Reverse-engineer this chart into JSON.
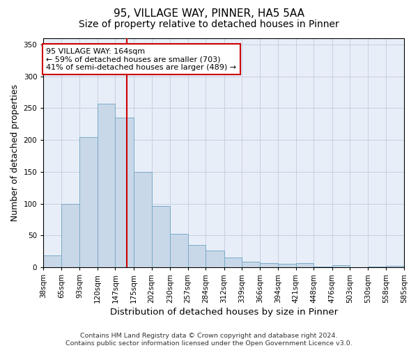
{
  "title_line1": "95, VILLAGE WAY, PINNER, HA5 5AA",
  "title_line2": "Size of property relative to detached houses in Pinner",
  "xlabel": "Distribution of detached houses by size in Pinner",
  "ylabel": "Number of detached properties",
  "footnote": "Contains HM Land Registry data © Crown copyright and database right 2024.\nContains public sector information licensed under the Open Government Licence v3.0.",
  "bin_labels": [
    "38sqm",
    "65sqm",
    "93sqm",
    "120sqm",
    "147sqm",
    "175sqm",
    "202sqm",
    "230sqm",
    "257sqm",
    "284sqm",
    "312sqm",
    "339sqm",
    "366sqm",
    "394sqm",
    "421sqm",
    "448sqm",
    "476sqm",
    "503sqm",
    "530sqm",
    "558sqm",
    "585sqm"
  ],
  "bin_edges": [
    38,
    65,
    93,
    120,
    147,
    175,
    202,
    230,
    257,
    284,
    312,
    339,
    366,
    394,
    421,
    448,
    476,
    503,
    530,
    558,
    585
  ],
  "bar_heights": [
    18,
    100,
    205,
    257,
    235,
    150,
    96,
    52,
    35,
    26,
    15,
    9,
    6,
    5,
    6,
    1,
    3,
    0,
    1,
    2
  ],
  "bar_color": "#c8d8e8",
  "bar_edge_color": "#7aaac8",
  "vertical_line_x": 164,
  "vertical_line_color": "#cc0000",
  "annotation_text": "95 VILLAGE WAY: 164sqm\n← 59% of detached houses are smaller (703)\n41% of semi-detached houses are larger (489) →",
  "annotation_box_color": "white",
  "annotation_box_edgecolor": "#cc0000",
  "ylim": [
    0,
    360
  ],
  "yticks": [
    0,
    50,
    100,
    150,
    200,
    250,
    300,
    350
  ],
  "grid_color": "#c8d0e0",
  "background_color": "#e8eef8",
  "title1_fontsize": 11,
  "title2_fontsize": 10,
  "xlabel_fontsize": 9.5,
  "ylabel_fontsize": 9,
  "tick_fontsize": 7.5,
  "footnote_fontsize": 6.8,
  "annot_fontsize": 8
}
